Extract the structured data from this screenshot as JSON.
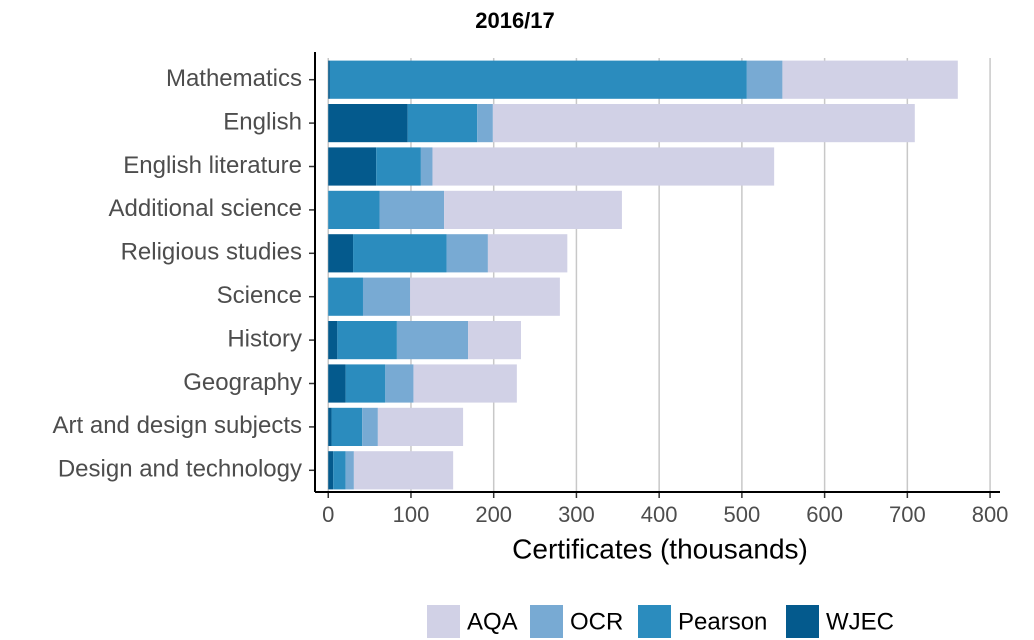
{
  "chart_data": {
    "type": "stacked-bar-horizontal",
    "title": "2016/17",
    "xlabel": "Certificates (thousands)",
    "categories": [
      "Mathematics",
      "English",
      "English literature",
      "Additional science",
      "Religious studies",
      "Science",
      "History",
      "Geography",
      "Art and design subjects",
      "Design and technology"
    ],
    "series": [
      {
        "name": "WJEC",
        "color": "#045a8d",
        "values": [
          2,
          96,
          58,
          0,
          30,
          0,
          11,
          21,
          4,
          6
        ]
      },
      {
        "name": "Pearson",
        "color": "#2b8cbe",
        "values": [
          504,
          84,
          54,
          62,
          113,
          42,
          72,
          48,
          37,
          15
        ]
      },
      {
        "name": "OCR",
        "color": "#78aad3",
        "values": [
          43,
          19,
          14,
          78,
          50,
          57,
          86,
          34,
          19,
          10
        ]
      },
      {
        "name": "AQA",
        "color": "#d1d1e6",
        "values": [
          212,
          510,
          413,
          215,
          96,
          181,
          64,
          125,
          103,
          120
        ]
      }
    ],
    "legend_order": [
      "AQA",
      "OCR",
      "Pearson",
      "WJEC"
    ],
    "xlim": [
      -16,
      812
    ],
    "xticks": [
      0,
      100,
      200,
      300,
      400,
      500,
      600,
      700,
      800
    ],
    "grid": true,
    "legend": "bottom"
  }
}
